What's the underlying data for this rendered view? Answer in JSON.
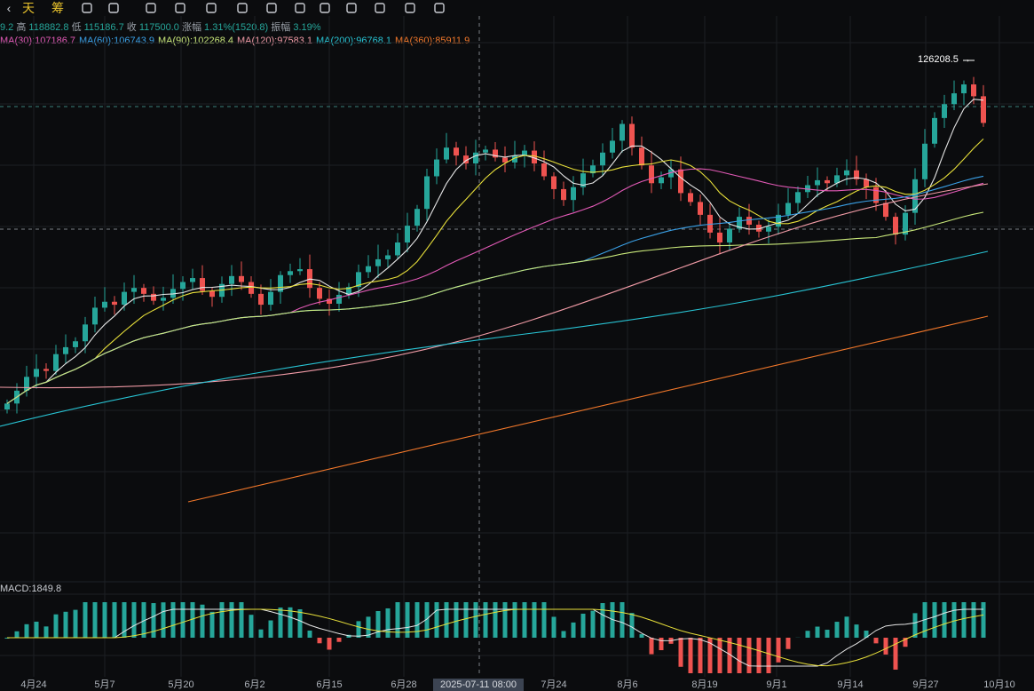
{
  "toolbar": {
    "items": [
      {
        "icon": "chevron-icon",
        "label": "‹"
      },
      {
        "icon": "day-text",
        "label": "天"
      },
      {
        "icon": "chip-icon",
        "label": "筹"
      },
      {
        "icon": "note-icon",
        "label": ""
      },
      {
        "icon": "brush-icon",
        "label": ""
      },
      {
        "icon": "bookmark-icon",
        "label": ""
      },
      {
        "icon": "ruler-icon",
        "label": ""
      },
      {
        "icon": "pen-icon",
        "label": ""
      },
      {
        "icon": "magnet-icon",
        "label": ""
      },
      {
        "icon": "lock-icon",
        "label": ""
      },
      {
        "icon": "layers-icon",
        "label": ""
      },
      {
        "icon": "tag-icon",
        "label": ""
      },
      {
        "icon": "settings-icon",
        "label": ""
      },
      {
        "icon": "fork-icon",
        "label": ""
      },
      {
        "icon": "compare-icon",
        "label": ""
      },
      {
        "icon": "trash-icon",
        "label": ""
      },
      {
        "icon": "undo-icon",
        "label": "↶"
      },
      {
        "icon": "redo-icon",
        "label": "↷"
      }
    ]
  },
  "info": {
    "open_prefix": "9.2",
    "high_label": "高",
    "high": "118882.8",
    "low_label": "低",
    "low": "115186.7",
    "close_label": "收",
    "close": "117500.0",
    "change_label": "涨幅",
    "change": "1.31%(1520.8)",
    "amplitude_label": "振幅",
    "amplitude": "3.19%"
  },
  "ma_legend": [
    {
      "text": "MA(30):107186.7",
      "color": "#e35ab7"
    },
    {
      "text": "MA(60):106743.9",
      "color": "#3aa0e6"
    },
    {
      "text": "MA(90):102268.4",
      "color": "#c9e87a"
    },
    {
      "text": "MA(120):97583.1",
      "color": "#f19ba6"
    },
    {
      "text": "MA(200):96768.1",
      "color": "#28c4d4"
    },
    {
      "text": "MA(360):85911.9",
      "color": "#f0772a"
    }
  ],
  "macd_label": "MACD:1849.8",
  "peak_label": "126208.5 →",
  "crosshair_date": "2025-07-11 08:00",
  "colors": {
    "up": "#26a69a",
    "down": "#ef5350",
    "grid": "#1c1f24",
    "bg": "#0b0c0e"
  },
  "chart_data": {
    "type": "candlestick",
    "x_ticks": [
      "4月24",
      "5月7",
      "5月20",
      "6月2",
      "6月15",
      "6月28",
      "7月24",
      "8月6",
      "8月19",
      "9月1",
      "9月14",
      "9月27",
      "10月10"
    ],
    "annotations": {
      "peak_high": 126208.5
    },
    "close_path": [
      93500,
      94800,
      96200,
      97000,
      96800,
      98500,
      99200,
      99800,
      101500,
      103200,
      103800,
      103500,
      104800,
      105200,
      104600,
      103900,
      104200,
      105100,
      105800,
      106200,
      104900,
      104300,
      105600,
      106400,
      105800,
      104600,
      103500,
      104800,
      106500,
      106900,
      107100,
      105200,
      104100,
      103600,
      104500,
      105300,
      106800,
      107400,
      108100,
      108500,
      109800,
      111500,
      113200,
      116500,
      118200,
      119400,
      118600,
      117800,
      118900,
      119200,
      118400,
      117900,
      118600,
      119100,
      117800,
      116500,
      115200,
      114100,
      115400,
      116800,
      117600,
      118900,
      120100,
      121800,
      119400,
      117600,
      115800,
      116400,
      117200,
      114800,
      113900,
      112600,
      110800,
      109800,
      111200,
      112400,
      111600,
      110900,
      111400,
      112600,
      113800,
      114900,
      115600,
      116100,
      115800,
      116600,
      117100,
      116200,
      115400,
      113800,
      112400,
      110600,
      112800,
      116200,
      119800,
      122400,
      123800,
      124900,
      125800,
      124600,
      121900
    ],
    "macd": {
      "value": 1849.8
    }
  }
}
